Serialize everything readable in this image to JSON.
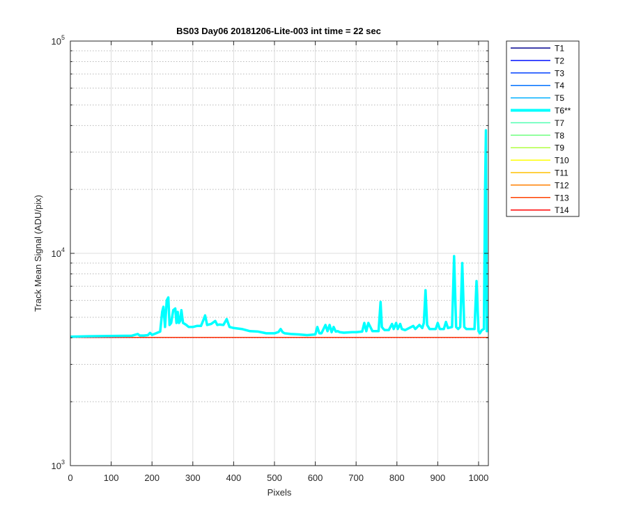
{
  "chart_data": {
    "type": "line",
    "title": "BS03 Day06 20181206-Lite-003 int time = 22 sec",
    "xlabel": "Pixels",
    "ylabel": "Track Mean Signal (ADU/pix)",
    "xlim": [
      0,
      1024
    ],
    "ylim": [
      1000,
      100000
    ],
    "yscale": "log",
    "grid": true,
    "minor_grid": true,
    "legend_position": "outside-top-right",
    "x_ticks": [
      0,
      100,
      200,
      300,
      400,
      500,
      600,
      700,
      800,
      900,
      1000
    ],
    "x_tick_labels": [
      "0",
      "100",
      "200",
      "300",
      "400",
      "500",
      "600",
      "700",
      "800",
      "900",
      "1000"
    ],
    "y_ticks": [
      {
        "value": 1000,
        "base": "10",
        "exp": "3"
      },
      {
        "value": 10000,
        "base": "10",
        "exp": "4"
      },
      {
        "value": 100000,
        "base": "10",
        "exp": "5"
      }
    ],
    "series": [
      {
        "name": "T1",
        "color": "#00008f",
        "highlight": false,
        "constant": 4020
      },
      {
        "name": "T2",
        "color": "#0010ff",
        "highlight": false,
        "constant": 4020
      },
      {
        "name": "T3",
        "color": "#0040ff",
        "highlight": false,
        "constant": 4020
      },
      {
        "name": "T4",
        "color": "#0070ff",
        "highlight": false,
        "constant": 4020
      },
      {
        "name": "T5",
        "color": "#00b0ff",
        "highlight": false,
        "constant": 4020
      },
      {
        "name": "T6**",
        "color": "#00ffff",
        "highlight": true,
        "x": [
          0,
          50,
          100,
          150,
          165,
          170,
          180,
          190,
          195,
          200,
          210,
          220,
          225,
          228,
          232,
          236,
          240,
          243,
          247,
          252,
          257,
          260,
          263,
          266,
          269,
          272,
          276,
          280,
          284,
          290,
          300,
          310,
          320,
          325,
          330,
          335,
          345,
          355,
          360,
          365,
          375,
          383,
          390,
          400,
          420,
          440,
          460,
          480,
          500,
          510,
          515,
          520,
          525,
          540,
          560,
          580,
          600,
          605,
          610,
          615,
          625,
          630,
          635,
          640,
          645,
          650,
          655,
          660,
          670,
          690,
          700,
          715,
          720,
          725,
          730,
          740,
          755,
          760,
          763,
          767,
          770,
          780,
          788,
          792,
          798,
          802,
          808,
          812,
          820,
          840,
          845,
          855,
          862,
          866,
          870,
          874,
          880,
          895,
          900,
          905,
          915,
          920,
          925,
          935,
          940,
          945,
          950,
          955,
          960,
          965,
          970,
          975,
          985,
          990,
          995,
          1000,
          1003,
          1008,
          1013,
          1016,
          1018,
          1020,
          1023
        ],
        "y": [
          4050,
          4070,
          4080,
          4090,
          4170,
          4100,
          4100,
          4120,
          4220,
          4130,
          4200,
          4280,
          5300,
          5600,
          4500,
          6000,
          6200,
          4600,
          4700,
          5400,
          5500,
          4700,
          5300,
          4700,
          4800,
          5400,
          4700,
          4650,
          4600,
          4500,
          4500,
          4550,
          4550,
          4800,
          5100,
          4600,
          4650,
          4800,
          4600,
          4620,
          4600,
          4900,
          4500,
          4450,
          4400,
          4300,
          4280,
          4200,
          4200,
          4260,
          4400,
          4250,
          4200,
          4170,
          4150,
          4120,
          4150,
          4500,
          4200,
          4200,
          4600,
          4300,
          4600,
          4250,
          4500,
          4280,
          4300,
          4250,
          4230,
          4250,
          4250,
          4280,
          4700,
          4300,
          4700,
          4300,
          4300,
          5900,
          4500,
          4400,
          4350,
          4350,
          4650,
          4400,
          4700,
          4400,
          4650,
          4400,
          4350,
          4550,
          4400,
          4600,
          4450,
          4700,
          6700,
          4600,
          4400,
          4400,
          4700,
          4400,
          4400,
          4750,
          4450,
          4500,
          9700,
          4500,
          4400,
          4500,
          9000,
          4500,
          4400,
          4400,
          4400,
          4400,
          7400,
          4300,
          4200,
          4350,
          4400,
          20000,
          38000,
          4300,
          4300
        ]
      },
      {
        "name": "T7",
        "color": "#50ffb0",
        "highlight": false,
        "constant": 4020
      },
      {
        "name": "T8",
        "color": "#70ff80",
        "highlight": false,
        "constant": 4020
      },
      {
        "name": "T9",
        "color": "#b0ff40",
        "highlight": false,
        "constant": 4020
      },
      {
        "name": "T10",
        "color": "#ffff00",
        "highlight": false,
        "constant": 4020
      },
      {
        "name": "T11",
        "color": "#ffc000",
        "highlight": false,
        "constant": 4020
      },
      {
        "name": "T12",
        "color": "#ff8000",
        "highlight": false,
        "constant": 4020
      },
      {
        "name": "T13",
        "color": "#ff4000",
        "highlight": false,
        "constant": 4020
      },
      {
        "name": "T14",
        "color": "#ff0000",
        "highlight": false,
        "constant": 4010
      }
    ]
  }
}
